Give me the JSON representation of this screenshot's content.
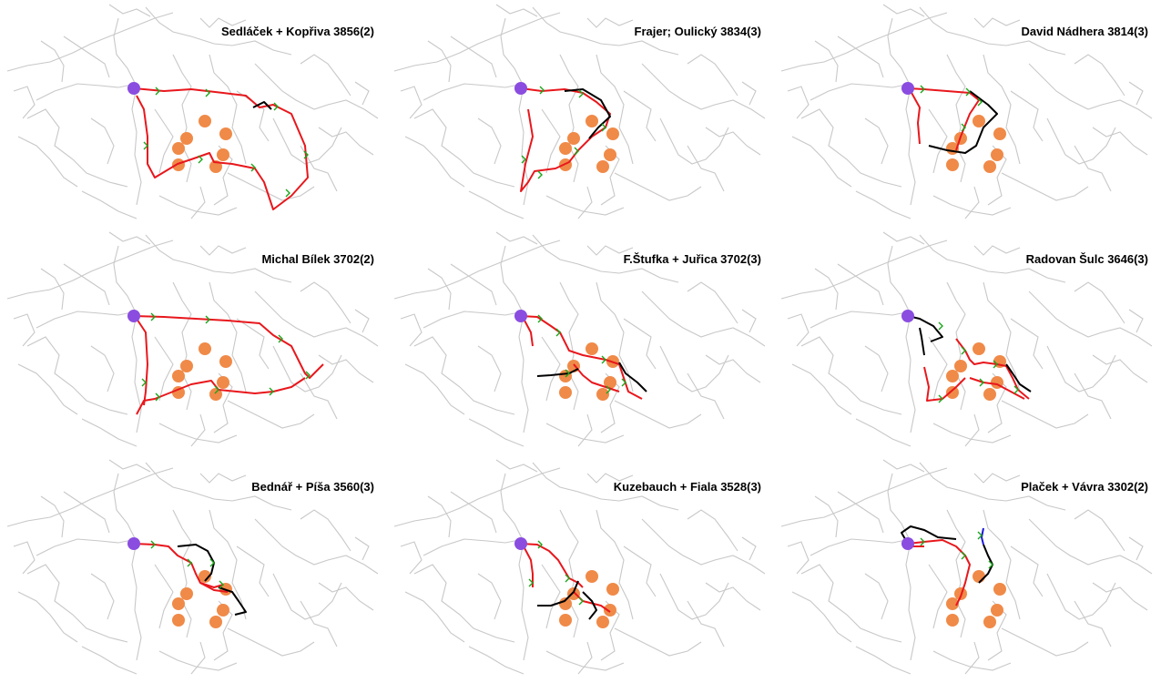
{
  "colors": {
    "background": "#ffffff",
    "network": "#c8c8c8",
    "route_red": "#e8171c",
    "route_black": "#000000",
    "route_blue": "#1b1bd8",
    "direction_marks": "#1aa51a",
    "start_node": "#8a4de0",
    "checkpoint": "#f08a48"
  },
  "panels": [
    {
      "title": "Sedláček + Kopřiva 3856(2)"
    },
    {
      "title": "Frajer; Oulický 3834(3)"
    },
    {
      "title": "David Nádhera 3814(3)"
    },
    {
      "title": "Michal Bílek 3702(2)"
    },
    {
      "title": "F.Štufka + Juřica 3702(3)"
    },
    {
      "title": "Radovan Šulc 3646(3)"
    },
    {
      "title": "Bednář + Píša 3560(3)"
    },
    {
      "title": "Kuzebauch + Fiala 3528(3)"
    },
    {
      "title": "Plaček + Vávra 3302(2)"
    }
  ]
}
